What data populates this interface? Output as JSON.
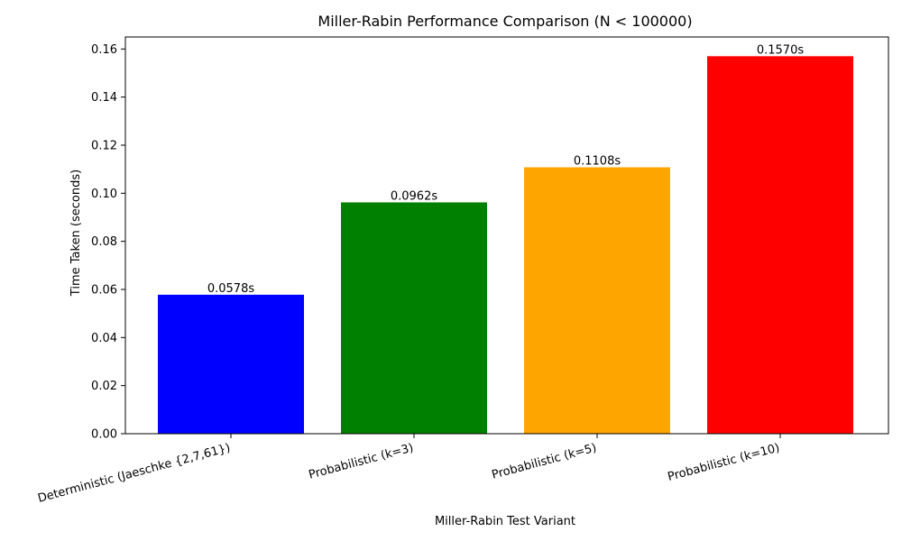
{
  "chart_data": {
    "type": "bar",
    "title": "Miller-Rabin Performance Comparison (N < 100000)",
    "xlabel": "Miller-Rabin Test Variant",
    "ylabel": "Time Taken (seconds)",
    "categories": [
      "Deterministic (Jaeschke {2,7,61})",
      "Probabilistic (k=3)",
      "Probabilistic (k=5)",
      "Probabilistic (k=10)"
    ],
    "values": [
      0.0578,
      0.0962,
      0.1108,
      0.157
    ],
    "data_labels": [
      "0.0578s",
      "0.0962s",
      "0.1108s",
      "0.1570s"
    ],
    "colors": [
      "#0000ff",
      "#008000",
      "#ffa500",
      "#ff0000"
    ],
    "ylim": [
      0,
      0.165
    ],
    "yticks": [
      0.0,
      0.02,
      0.04,
      0.06,
      0.08,
      0.1,
      0.12,
      0.14,
      0.16
    ],
    "ytick_labels": [
      "0.00",
      "0.02",
      "0.04",
      "0.06",
      "0.08",
      "0.10",
      "0.12",
      "0.14",
      "0.16"
    ],
    "grid": false,
    "legend": "none"
  }
}
